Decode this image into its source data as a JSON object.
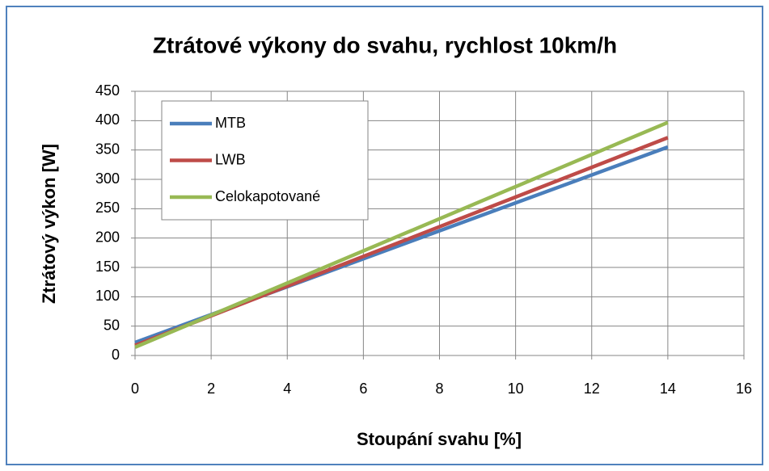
{
  "chart_data": {
    "type": "line",
    "title": "Ztrátové výkony do svahu, rychlost 10km/h",
    "x_label": "Stoupání  svahu [%]",
    "y_label": "Ztrátový výkon [W]",
    "x": [
      0,
      14
    ],
    "series": [
      {
        "name": "MTB",
        "color": "#4a7ebb",
        "values": [
          22,
          355
        ]
      },
      {
        "name": "LWB",
        "color": "#be4b48",
        "values": [
          17,
          371
        ]
      },
      {
        "name": "Celokapotované",
        "color": "#98b954",
        "values": [
          14,
          397
        ]
      }
    ],
    "xlim": [
      0,
      16
    ],
    "xticks": [
      0,
      2,
      4,
      6,
      8,
      10,
      12,
      14,
      16
    ],
    "ylim": [
      0,
      450
    ],
    "yticks": [
      0,
      50,
      100,
      150,
      200,
      250,
      300,
      350,
      400,
      450
    ],
    "grid": true,
    "legend": "upper left"
  }
}
